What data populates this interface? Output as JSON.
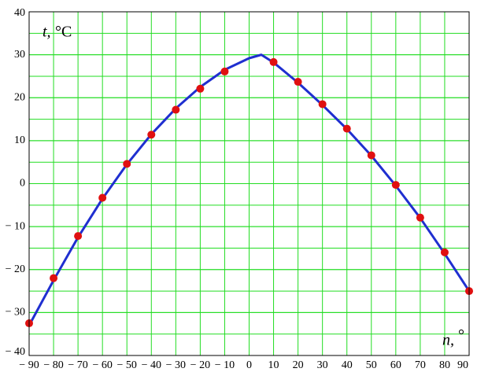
{
  "chart_data": {
    "type": "line",
    "y_label": "t,",
    "y_unit": "°C",
    "x_label": "n,",
    "x_unit": "°",
    "xlim": [
      -90,
      90
    ],
    "ylim": [
      -40,
      40
    ],
    "xticks": [
      {
        "value": -90,
        "label": "− 90"
      },
      {
        "value": -80,
        "label": "− 80"
      },
      {
        "value": -70,
        "label": "− 70"
      },
      {
        "value": -60,
        "label": "− 60"
      },
      {
        "value": -50,
        "label": "− 50"
      },
      {
        "value": -40,
        "label": "− 40"
      },
      {
        "value": -30,
        "label": "− 30"
      },
      {
        "value": -20,
        "label": "− 20"
      },
      {
        "value": -10,
        "label": "− 10"
      },
      0,
      10,
      20,
      30,
      40,
      50,
      60,
      70,
      80,
      90
    ],
    "yticks": [
      {
        "value": -40,
        "label": "− 40"
      },
      {
        "value": -30,
        "label": "− 30"
      },
      {
        "value": -20,
        "label": "− 20"
      },
      {
        "value": -10,
        "label": "− 10"
      },
      0,
      10,
      20,
      30,
      40
    ],
    "grid": true,
    "grid_color": "#22dd22",
    "minor_ygrid_step": 5,
    "series": [
      {
        "kind": "line",
        "color": "#1f2fd0",
        "x": [
          -90,
          -80,
          -70,
          -60,
          -50,
          -40,
          -30,
          -20,
          -10,
          0,
          5,
          10,
          20,
          30,
          40,
          50,
          60,
          70,
          80,
          90
        ],
        "values": [
          -33,
          -22.5,
          -12.5,
          -3.5,
          4.5,
          11.5,
          17.5,
          22.5,
          26.5,
          29.2,
          30,
          28.2,
          23.5,
          18.3,
          12.7,
          6.5,
          -0.5,
          -8,
          -16.3,
          -25
        ]
      },
      {
        "kind": "points",
        "color": "#e01010",
        "x": [
          -90,
          -80,
          -70,
          -60,
          -50,
          -40,
          -30,
          -20,
          -10,
          10,
          20,
          30,
          40,
          50,
          60,
          70,
          80,
          90
        ],
        "values": [
          -32.5,
          -22,
          -12.2,
          -3.3,
          4.6,
          11.4,
          17.2,
          22.1,
          26.1,
          28.3,
          23.7,
          18.5,
          12.8,
          6.6,
          -0.3,
          -7.9,
          -16,
          -25
        ]
      }
    ]
  }
}
